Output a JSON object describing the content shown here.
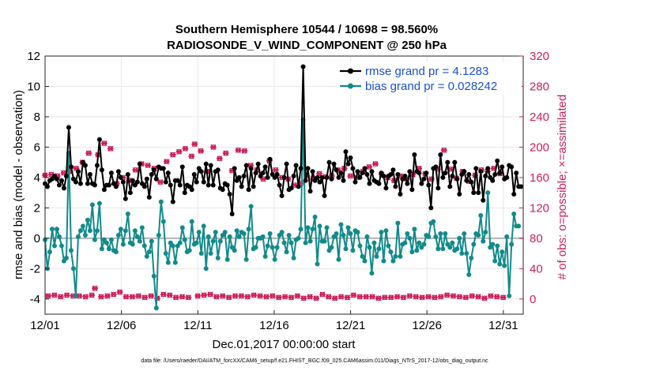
{
  "chart_data": {
    "type": "line",
    "title_line1": "Southern Hemisphere 10544 / 10698 = 98.560%",
    "title_line2": "RADIOSONDE_V_WIND_COMPONENT @ 250 hPa",
    "xlabel": "Dec.01,2017 00:00:00 start",
    "ylabel": "rmse and bias (model - observation)",
    "ylabel_right": "# of obs: o=possible; ×=assimilated",
    "xlim": [
      0,
      31.3
    ],
    "ylim": [
      -5,
      12
    ],
    "ylim_right": [
      -20,
      320
    ],
    "x_tick_positions": [
      0,
      5,
      10,
      15,
      20,
      25,
      30
    ],
    "x_tick_labels": [
      "12/01",
      "12/06",
      "12/11",
      "12/16",
      "12/21",
      "12/26",
      "12/31"
    ],
    "y_ticks": [
      -4,
      -2,
      0,
      2,
      4,
      6,
      8,
      10,
      12
    ],
    "y_ticks_right": [
      0,
      40,
      80,
      120,
      160,
      200,
      240,
      280,
      320
    ],
    "zero_line": 0,
    "legend": [
      {
        "label": "rmse grand pr = 4.1283",
        "color": "#000000"
      },
      {
        "label": "bias grand pr = 0.028242",
        "color": "#118a8a"
      }
    ],
    "series": [
      {
        "name": "rmse",
        "color": "#000000",
        "axis": "left",
        "values": [
          3.6,
          3.4,
          3.8,
          3.9,
          4.1,
          3.9,
          3.5,
          3.8,
          3.3,
          4.1,
          7.3,
          4.7,
          3.9,
          3.7,
          4.4,
          3.6,
          5.0,
          4.8,
          3.6,
          4.2,
          3.6,
          3.5,
          4.8,
          6.5,
          4.5,
          3.2,
          3.5,
          3.5,
          4.3,
          3.6,
          3.4,
          4.4,
          4.0,
          3.7,
          2.6,
          4.2,
          3.0,
          3.8,
          3.5,
          3.7,
          4.9,
          3.6,
          3.4,
          3.9,
          2.7,
          4.2,
          4.5,
          3.9,
          4.7,
          4.6,
          4.6,
          3.7,
          4.3,
          3.5,
          2.4,
          3.8,
          3.8,
          3.5,
          4.7,
          3.0,
          3.5,
          3.4,
          3.2,
          4.2,
          3.7,
          4.6,
          4.4,
          3.7,
          4.9,
          3.5,
          4.8,
          3.5,
          4.4,
          4.5,
          3.3,
          3.2,
          3.6,
          3.5,
          2.9,
          1.6,
          4.6,
          3.8,
          4.0,
          3.4,
          4.1,
          4.8,
          3.2,
          4.6,
          3.4,
          4.3,
          4.9,
          4.1,
          4.3,
          4.7,
          4.0,
          5.2,
          4.2,
          4.0,
          4.2,
          3.5,
          2.8,
          4.0,
          4.9,
          3.2,
          3.3,
          4.1,
          4.8,
          3.4,
          4.6,
          11.3,
          3.8,
          4.6,
          3.1,
          4.4,
          3.8,
          4.0,
          3.7,
          4.0,
          2.8,
          4.0,
          5.0,
          3.9,
          4.9,
          4.5,
          4.0,
          4.3,
          3.8,
          5.7,
          4.9,
          5.3,
          4.6,
          3.7,
          4.4,
          4.0,
          4.3,
          4.6,
          4.2,
          3.6,
          4.4,
          3.8,
          3.7,
          3.6,
          4.3,
          4.1,
          3.3,
          4.1,
          4.2,
          4.5,
          3.4,
          4.2,
          2.9,
          3.9,
          4.1,
          3.6,
          4.4,
          3.2,
          5.5,
          4.4,
          4.3,
          3.6,
          3.9,
          4.3,
          3.5,
          2.0,
          4.6,
          4.7,
          3.3,
          5.5,
          4.0,
          4.3,
          5.0,
          3.4,
          4.1,
          5.0,
          3.9,
          2.9,
          4.2,
          4.4,
          3.8,
          4.2,
          3.7,
          3.0,
          4.6,
          3.0,
          4.4,
          2.5,
          4.1,
          4.6,
          4.0,
          3.8,
          4.2,
          5.1,
          4.3,
          4.7,
          3.9,
          4.0,
          4.8,
          4.7,
          2.9,
          4.3,
          3.4,
          3.4
        ],
        "x_start": 0,
        "x_step": 0.155
      },
      {
        "name": "bias",
        "color": "#118a8a",
        "axis": "left",
        "values": [
          -0.1,
          -2.0,
          -0.9,
          0.6,
          -0.5,
          0.6,
          0.1,
          -0.5,
          -1.5,
          -1.3,
          5.6,
          -0.8,
          -2.0,
          -3.8,
          0.1,
          0.5,
          0.8,
          0.2,
          1.2,
          0.5,
          2.2,
          -0.1,
          0.5,
          2.3,
          -0.7,
          -0.1,
          -0.3,
          -0.7,
          -0.1,
          -0.8,
          -0.9,
          0.2,
          0.6,
          -0.4,
          0.5,
          1.6,
          -0.3,
          -0.4,
          0.5,
          0.1,
          -0.2,
          0.7,
          -0.5,
          -1.2,
          -0.9,
          -0.2,
          -2.5,
          -4.6,
          0.2,
          2.4,
          1.1,
          -1.0,
          -1.6,
          -0.3,
          -0.5,
          -1.6,
          -0.5,
          -0.3,
          0.7,
          -0.1,
          -0.9,
          -0.8,
          1.1,
          -0.4,
          -0.3,
          0.4,
          -1.0,
          0.8,
          -2.0,
          0.1,
          -1.0,
          -0.2,
          0.4,
          -1.3,
          -0.2,
          0.2,
          0.4,
          -1.4,
          0.1,
          -0.6,
          -0.8,
          0.5,
          0.1,
          0.4,
          0.3,
          -1.4,
          0.6,
          2.1,
          -0.7,
          -0.6,
          0.0,
          0.0,
          0.1,
          -1.2,
          -0.5,
          0.3,
          -0.6,
          -1.4,
          -0.6,
          0.2,
          0.4,
          -0.3,
          -0.9,
          0.2,
          -0.3,
          -1.3,
          -0.1,
          0.0,
          0.6,
          7.8,
          -0.3,
          0.7,
          -0.2,
          0.6,
          1.4,
          -1.7,
          0.8,
          -0.2,
          -0.2,
          0.7,
          -0.8,
          -0.6,
          0.1,
          0.3,
          -1.4,
          0.9,
          0.2,
          -0.7,
          0.7,
          0.3,
          -0.8,
          0.5,
          0.4,
          -0.5,
          -1.2,
          -1.5,
          0.1,
          -0.6,
          -2.3,
          -0.3,
          -1.2,
          -0.7,
          0.4,
          -1.5,
          0.5,
          -0.5,
          -0.9,
          -1.5,
          -1.2,
          1.0,
          -1.2,
          -0.4,
          -0.3,
          0.3,
          0.0,
          -0.9,
          0.6,
          -0.8,
          -0.3,
          -0.6,
          -0.4,
          0.2,
          0.1,
          1.0,
          1.1,
          0.1,
          -0.7,
          0.3,
          -0.7,
          0.3,
          -0.4,
          -0.6,
          -0.3,
          -0.8,
          -0.7,
          0.0,
          -1.0,
          0.3,
          -1.0,
          -2.4,
          -1.3,
          -0.4,
          0.3,
          0.2,
          1.5,
          -0.2,
          0.4,
          3.0,
          -0.6,
          -0.4,
          -1.5,
          -0.5,
          -1.7,
          -0.9,
          -1.8,
          0.1,
          -3.8,
          -0.4,
          1.6,
          0.8,
          0.8
        ],
        "x_start": 0,
        "x_step": 0.155
      },
      {
        "name": "obs possible",
        "color": "#cc1f5c",
        "axis": "right",
        "marker": "circle",
        "values": [
          163,
          4,
          164,
          5,
          162,
          3,
          166,
          5,
          168,
          4,
          172,
          4,
          180,
          3,
          192,
          5,
          14,
          190,
          3,
          205,
          4,
          198,
          6,
          152,
          9,
          160,
          3,
          156,
          3,
          170,
          4,
          178,
          2,
          176,
          4,
          172,
          1,
          154,
          6,
          181,
          5,
          190,
          2,
          194,
          3,
          198,
          2,
          188,
          204,
          4,
          195,
          5,
          168,
          6,
          200,
          3,
          185,
          4,
          192,
          2,
          169,
          4,
          196,
          4,
          195,
          3,
          176,
          5,
          170,
          4,
          158,
          3,
          182,
          4,
          170,
          2,
          160,
          3,
          158,
          2,
          150,
          4,
          152,
          1,
          162,
          3,
          158,
          1,
          165,
          6,
          161,
          3,
          162,
          1,
          170,
          3,
          172,
          2,
          162,
          5,
          160,
          3,
          168,
          3,
          174,
          3,
          178,
          1,
          164,
          2,
          160,
          2,
          156,
          3,
          162,
          2,
          158,
          4,
          164,
          3,
          172,
          2,
          165,
          3,
          158,
          2,
          171,
          3,
          196,
          5,
          171,
          4,
          159,
          3,
          168,
          2,
          155,
          4,
          163,
          3,
          170,
          1,
          168,
          4,
          172,
          3,
          165,
          2
        ],
        "x_start": 0,
        "x_step": 0.204
      },
      {
        "name": "obs assimilated",
        "color": "#cc1f5c",
        "axis": "right",
        "marker": "x",
        "values": [
          163,
          4,
          164,
          5,
          162,
          3,
          166,
          5,
          168,
          4,
          172,
          4,
          180,
          3,
          192,
          5,
          14,
          190,
          3,
          205,
          4,
          198,
          6,
          152,
          9,
          160,
          3,
          156,
          3,
          170,
          4,
          178,
          2,
          176,
          4,
          172,
          1,
          154,
          6,
          181,
          5,
          190,
          2,
          194,
          3,
          198,
          2,
          188,
          204,
          4,
          195,
          5,
          168,
          6,
          200,
          3,
          185,
          4,
          192,
          2,
          169,
          4,
          196,
          4,
          195,
          3,
          176,
          5,
          170,
          4,
          158,
          3,
          182,
          4,
          170,
          2,
          160,
          3,
          158,
          2,
          150,
          4,
          152,
          1,
          162,
          3,
          158,
          1,
          165,
          6,
          161,
          3,
          162,
          1,
          170,
          3,
          172,
          2,
          162,
          5,
          160,
          3,
          168,
          3,
          174,
          3,
          178,
          1,
          164,
          2,
          160,
          2,
          156,
          3,
          162,
          2,
          158,
          4,
          164,
          3,
          172,
          2,
          165,
          3,
          158,
          2,
          171,
          3,
          196,
          5,
          171,
          4,
          159,
          3,
          168,
          2,
          155,
          4,
          163,
          3,
          170,
          1,
          168,
          4,
          172,
          3,
          165,
          2
        ],
        "x_start": 0,
        "x_step": 0.204
      }
    ]
  },
  "footer": "data file: /Users/raeder/DAI/ATM_forcXX/CAM6_setup/f.e21.FHIST_BGC.f09_025.CAM6assim.011/Diags_NTrS_2017-12/obs_diag_output.nc"
}
